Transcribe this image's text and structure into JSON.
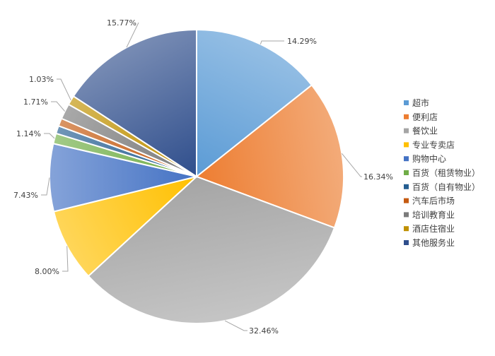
{
  "chart_data": {
    "type": "pie",
    "legend_position": "right",
    "slices": [
      {
        "label": "超市",
        "value": 14.29,
        "value_label": "14.29%",
        "color": "#5b9bd5"
      },
      {
        "label": "便利店",
        "value": 16.34,
        "value_label": "16.34%",
        "color": "#ed7d31"
      },
      {
        "label": "餐饮业",
        "value": 32.46,
        "value_label": "32.46%",
        "color": "#a5a5a5"
      },
      {
        "label": "专业专卖店",
        "value": 8.0,
        "value_label": "8.00%",
        "color": "#ffc000"
      },
      {
        "label": "购物中心",
        "value": 7.43,
        "value_label": "7.43%",
        "color": "#4472c4"
      },
      {
        "label": "百货（租赁物业）",
        "value": 1.14,
        "value_label": "1.14%",
        "color": "#70ad47"
      },
      {
        "label": "百货（自有物业）",
        "value": 0.86,
        "value_label": "",
        "color": "#255e91"
      },
      {
        "label": "汽车后市场",
        "value": 0.86,
        "value_label": "",
        "color": "#c55a11"
      },
      {
        "label": "培训教育业",
        "value": 1.71,
        "value_label": "1.71%",
        "color": "#7b7b7b"
      },
      {
        "label": "酒店住宿业",
        "value": 1.03,
        "value_label": "1.03%",
        "color": "#bf9000"
      },
      {
        "label": "其他服务业",
        "value": 15.77,
        "value_label": "15.77%",
        "color": "#2f4e8c"
      }
    ]
  }
}
